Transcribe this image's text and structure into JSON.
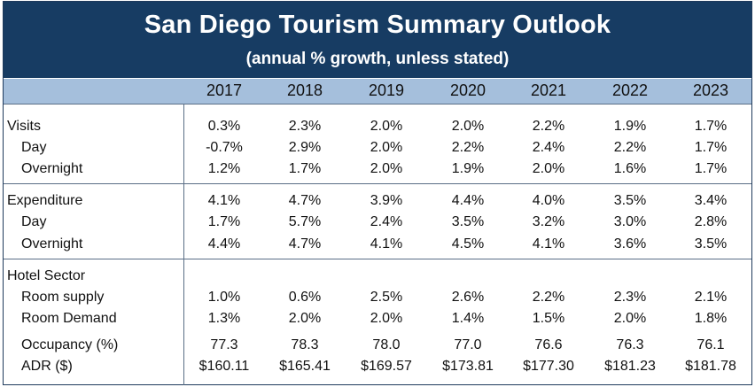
{
  "title": "San Diego Tourism Summary Outlook",
  "subtitle": "(annual % growth, unless stated)",
  "colors": {
    "banner": "#173c63",
    "year_bar": "#a5bfdc",
    "rule": "#5a6e86"
  },
  "chart_data": {
    "type": "table",
    "columns": [
      "2017",
      "2018",
      "2019",
      "2020",
      "2021",
      "2022",
      "2023"
    ],
    "sections": [
      {
        "rows": [
          {
            "label": "Visits",
            "indent": false,
            "values": [
              "0.3%",
              "2.3%",
              "2.0%",
              "2.0%",
              "2.2%",
              "1.9%",
              "1.7%"
            ]
          },
          {
            "label": "Day",
            "indent": true,
            "values": [
              "-0.7%",
              "2.9%",
              "2.0%",
              "2.2%",
              "2.4%",
              "2.2%",
              "1.7%"
            ]
          },
          {
            "label": "Overnight",
            "indent": true,
            "values": [
              "1.2%",
              "1.7%",
              "2.0%",
              "1.9%",
              "2.0%",
              "1.6%",
              "1.7%"
            ]
          }
        ]
      },
      {
        "rows": [
          {
            "label": "Expenditure",
            "indent": false,
            "values": [
              "4.1%",
              "4.7%",
              "3.9%",
              "4.4%",
              "4.0%",
              "3.5%",
              "3.4%"
            ]
          },
          {
            "label": "Day",
            "indent": true,
            "values": [
              "1.7%",
              "5.7%",
              "2.4%",
              "3.5%",
              "3.2%",
              "3.0%",
              "2.8%"
            ]
          },
          {
            "label": "Overnight",
            "indent": true,
            "values": [
              "4.4%",
              "4.7%",
              "4.1%",
              "4.5%",
              "4.1%",
              "3.6%",
              "3.5%"
            ]
          }
        ]
      },
      {
        "rows": [
          {
            "label": "Hotel Sector",
            "indent": false,
            "values": [
              "",
              "",
              "",
              "",
              "",
              "",
              ""
            ]
          },
          {
            "label": "Room supply",
            "indent": true,
            "values": [
              "1.0%",
              "0.6%",
              "2.5%",
              "2.6%",
              "2.2%",
              "2.3%",
              "2.1%"
            ]
          },
          {
            "label": "Room Demand",
            "indent": true,
            "values": [
              "1.3%",
              "2.0%",
              "2.0%",
              "1.4%",
              "1.5%",
              "2.0%",
              "1.8%"
            ]
          },
          {
            "label": "Occupancy (%)",
            "indent": true,
            "values": [
              "77.3",
              "78.3",
              "78.0",
              "77.0",
              "76.6",
              "76.3",
              "76.1"
            ]
          },
          {
            "label": "ADR ($)",
            "indent": true,
            "values": [
              "$160.11",
              "$165.41",
              "$169.57",
              "$173.81",
              "$177.30",
              "$181.23",
              "$181.78"
            ]
          }
        ]
      }
    ]
  }
}
